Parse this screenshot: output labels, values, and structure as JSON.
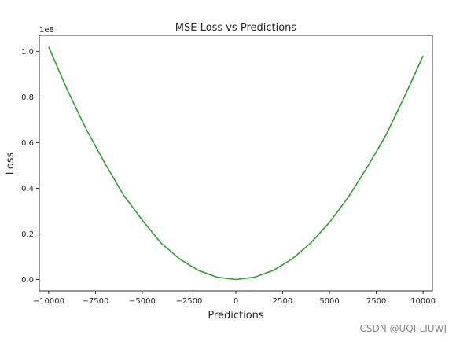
{
  "chart_data": {
    "type": "line",
    "title": "MSE Loss vs Predictions",
    "xlabel": "Predictions",
    "ylabel": "Loss",
    "y_offset_label": "1e8",
    "xlim": [
      -10500,
      10500
    ],
    "ylim": [
      -0.05,
      1.07
    ],
    "x_ticks": [
      -10000,
      -7500,
      -5000,
      -2500,
      0,
      2500,
      5000,
      7500,
      10000
    ],
    "x_tick_labels": [
      "−10000",
      "−7500",
      "−5000",
      "−2500",
      "0",
      "2500",
      "5000",
      "7500",
      "10000"
    ],
    "y_ticks": [
      0.0,
      0.2,
      0.4,
      0.6,
      0.8,
      1.0
    ],
    "y_tick_labels": [
      "0.0",
      "0.2",
      "0.4",
      "0.6",
      "0.8",
      "1.0"
    ],
    "grid": false,
    "series": [
      {
        "color": "#2ca02c",
        "x": [
          -10000,
          -9000,
          -8000,
          -7000,
          -6000,
          -5000,
          -4000,
          -3000,
          -2000,
          -1000,
          0,
          1000,
          2000,
          3000,
          4000,
          5000,
          6000,
          7000,
          8000,
          9000,
          10000
        ],
        "y": [
          1.02,
          0.83,
          0.66,
          0.51,
          0.37,
          0.26,
          0.16,
          0.09,
          0.04,
          0.01,
          0.0,
          0.01,
          0.04,
          0.09,
          0.16,
          0.25,
          0.36,
          0.49,
          0.63,
          0.8,
          0.98
        ]
      }
    ]
  },
  "watermark": "CSDN @UQI-LIUWJ"
}
